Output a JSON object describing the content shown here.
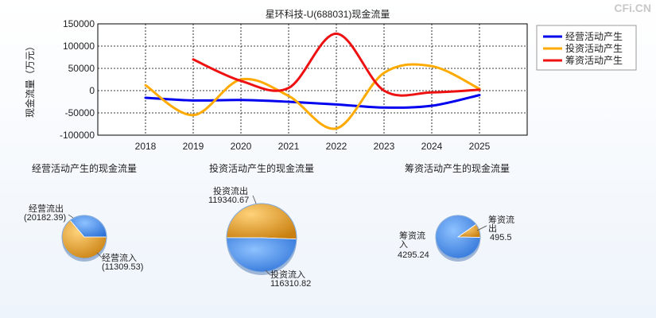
{
  "watermark": "CFi.CN",
  "chart_data": [
    {
      "type": "line",
      "title": "星环科技-U(688031)现金流量",
      "ylabel": "现金流量（万元）",
      "xlabel": "",
      "x": [
        "2018",
        "2019",
        "2020",
        "2021",
        "2022",
        "2023",
        "2024",
        "2025"
      ],
      "ylim": [
        -100000,
        150000
      ],
      "yticks": [
        "150000",
        "100000",
        "50000",
        "0",
        "-50000",
        "-100000"
      ],
      "grid": true,
      "legend_position": "top-right",
      "series": [
        {
          "name": "经营活动产生",
          "color": "#0000ee",
          "values": [
            -16000,
            -22000,
            -21000,
            -25000,
            -31000,
            -38000,
            -34000,
            -10000
          ]
        },
        {
          "name": "投资活动产生",
          "color": "#ffaa00",
          "values": [
            12000,
            -55000,
            25000,
            -12000,
            -85000,
            40000,
            55000,
            4000
          ]
        },
        {
          "name": "筹资活动产生",
          "color": "#ee1111",
          "values": [
            null,
            70000,
            22000,
            6000,
            128000,
            0,
            -4000,
            2000
          ]
        }
      ]
    },
    {
      "type": "pie",
      "title": "经营活动产生的现金流量",
      "slices": [
        {
          "label": "经营流出",
          "value_text": "(20182.39)",
          "value": 20182.39,
          "color": "#f0a830"
        },
        {
          "label": "经营流入",
          "value_text": "(11309.53)",
          "value": 11309.53,
          "color": "#4c90e8"
        }
      ]
    },
    {
      "type": "pie",
      "title": "投资活动产生的现金流量",
      "slices": [
        {
          "label": "投资流出",
          "value_text": "119340.67",
          "value": 119340.67,
          "color": "#f0a830"
        },
        {
          "label": "投资流入",
          "value_text": "116310.82",
          "value": 116310.82,
          "color": "#4c90e8"
        }
      ]
    },
    {
      "type": "pie",
      "title": "筹资活动产生的现金流量",
      "slices": [
        {
          "label": "筹资流出",
          "value_text": "495.5",
          "value": 495.5,
          "color": "#f0a830"
        },
        {
          "label": "筹资流入",
          "value_text": "4295.24",
          "value": 4295.24,
          "color": "#4c90e8"
        }
      ]
    }
  ]
}
